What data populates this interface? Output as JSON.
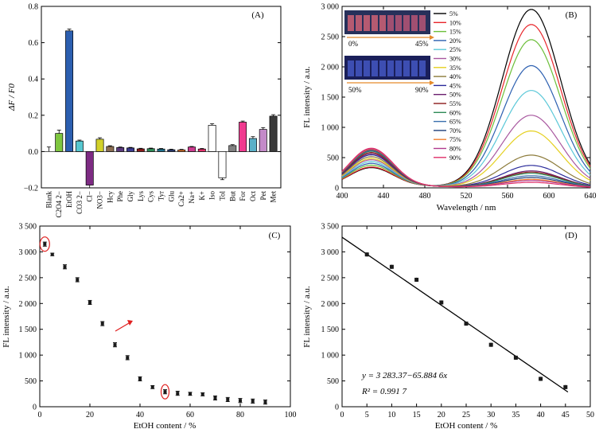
{
  "chart_data": [
    {
      "panel": "(A)",
      "type": "bar",
      "ylabel": "ΔF / F0",
      "ylim": [
        -0.2,
        0.8
      ],
      "yticks": [
        "−0.2",
        "0.0",
        "0.2",
        "0.4",
        "0.6",
        "0.8"
      ],
      "categories": [
        "Blank",
        "C2O4 2−",
        "EtOH",
        "CO3 2−",
        "Cl−",
        "NO3−",
        "Hcy",
        "Phe",
        "Gly",
        "Lys",
        "Cys",
        "Tyr",
        "Glu",
        "Ca2+",
        "Na+",
        "K+",
        "Iso",
        "Tol",
        "But",
        "For",
        "Oct",
        "Pet",
        "Met"
      ],
      "values": [
        0.0,
        0.1,
        0.665,
        0.058,
        -0.185,
        0.068,
        0.028,
        0.022,
        0.02,
        0.015,
        0.016,
        0.014,
        0.01,
        0.009,
        0.025,
        0.014,
        0.145,
        -0.145,
        0.033,
        0.162,
        0.072,
        0.122,
        0.195
      ],
      "errors": [
        0.025,
        0.018,
        0.01,
        0.005,
        0.015,
        0.008,
        0.004,
        0.003,
        0.003,
        0.003,
        0.003,
        0.003,
        0.003,
        0.003,
        0.003,
        0.003,
        0.008,
        0.01,
        0.005,
        0.006,
        0.01,
        0.01,
        0.008
      ],
      "colors": [
        "#e8262b",
        "#7ec63f",
        "#2c5fb0",
        "#56c7d0",
        "#7d2b83",
        "#d2d12a",
        "#8c6e52",
        "#5b3a7e",
        "#3a3a8f",
        "#8b1a1a",
        "#2e8b57",
        "#1f6f8b",
        "#2c3e7a",
        "#f08030",
        "#cc3b8f",
        "#e0306a",
        "#ffffff",
        "#ffffff",
        "#808080",
        "#f03a8f",
        "#5ab0c8",
        "#c38ac8",
        "#3a3a3a"
      ]
    },
    {
      "panel": "(B)",
      "type": "line",
      "xlabel": "Wavelength / nm",
      "ylabel": "FL intensity / a.u.",
      "xlim": [
        400,
        640
      ],
      "ylim": [
        0,
        3000
      ],
      "xticks": [
        "400",
        "440",
        "480",
        "520",
        "560",
        "600",
        "640"
      ],
      "yticks": [
        "0",
        "500",
        "1 000",
        "1 500",
        "2 000",
        "2 500",
        "3 000"
      ],
      "inset_labels": [
        "0%",
        "45%",
        "50%",
        "90%"
      ],
      "series": [
        {
          "name": "5%",
          "color": "#000000",
          "peak2": 2950,
          "peak1": 320
        },
        {
          "name": "10%",
          "color": "#e8262b",
          "peak2": 2700,
          "peak1": 330
        },
        {
          "name": "15%",
          "color": "#6cbf3a",
          "peak2": 2450,
          "peak1": 360
        },
        {
          "name": "20%",
          "color": "#2c5fb0",
          "peak2": 2020,
          "peak1": 390
        },
        {
          "name": "25%",
          "color": "#5bc8d8",
          "peak2": 1610,
          "peak1": 420
        },
        {
          "name": "30%",
          "color": "#a8579f",
          "peak2": 1200,
          "peak1": 450
        },
        {
          "name": "35%",
          "color": "#e5d020",
          "peak2": 940,
          "peak1": 470
        },
        {
          "name": "40%",
          "color": "#8c7b3a",
          "peak2": 540,
          "peak1": 500
        },
        {
          "name": "45%",
          "color": "#2a2a9a",
          "peak2": 370,
          "peak1": 530
        },
        {
          "name": "50%",
          "color": "#6a1f6e",
          "peak2": 280,
          "peak1": 550
        },
        {
          "name": "55%",
          "color": "#8b1a1a",
          "peak2": 260,
          "peak1": 570
        },
        {
          "name": "60%",
          "color": "#2e8b57",
          "peak2": 240,
          "peak1": 590
        },
        {
          "name": "65%",
          "color": "#3a6fae",
          "peak2": 200,
          "peak1": 600
        },
        {
          "name": "70%",
          "color": "#1f3f7a",
          "peak2": 170,
          "peak1": 610
        },
        {
          "name": "75%",
          "color": "#f08030",
          "peak2": 140,
          "peak1": 620
        },
        {
          "name": "80%",
          "color": "#b03a8f",
          "peak2": 120,
          "peak1": 630
        },
        {
          "name": "90%",
          "color": "#e0306a",
          "peak2": 90,
          "peak1": 640
        }
      ]
    },
    {
      "panel": "(C)",
      "type": "scatter",
      "xlabel": "EtOH content / %",
      "ylabel": "FL intensity / a.u.",
      "xlim": [
        0,
        100
      ],
      "ylim": [
        0,
        3500
      ],
      "xticks": [
        "0",
        "20",
        "40",
        "60",
        "80",
        "100"
      ],
      "yticks": [
        "0",
        "500",
        "1 000",
        "1 500",
        "2 000",
        "2 500",
        "3 000",
        "3 500"
      ],
      "x": [
        2,
        5,
        10,
        15,
        20,
        25,
        30,
        35,
        40,
        45,
        50,
        55,
        60,
        65,
        70,
        75,
        80,
        85,
        90
      ],
      "y": [
        3150,
        2950,
        2710,
        2460,
        2020,
        1610,
        1200,
        950,
        540,
        380,
        290,
        260,
        250,
        240,
        170,
        140,
        120,
        110,
        90
      ],
      "errors": [
        40,
        25,
        40,
        40,
        40,
        40,
        40,
        40,
        40,
        30,
        40,
        40,
        30,
        30,
        40,
        40,
        40,
        40,
        40
      ]
    },
    {
      "panel": "(D)",
      "type": "scatter",
      "xlabel": "EtOH content / %",
      "ylabel": "FL intensity / a.u.",
      "xlim": [
        0,
        50
      ],
      "ylim": [
        0,
        3500
      ],
      "xticks": [
        "0",
        "5",
        "10",
        "15",
        "20",
        "25",
        "30",
        "35",
        "40",
        "45",
        "50"
      ],
      "yticks": [
        "0",
        "500",
        "1 000",
        "1 500",
        "2 000",
        "2 500",
        "3 000",
        "3 500"
      ],
      "x": [
        5,
        10,
        15,
        20,
        25,
        30,
        35,
        40,
        45
      ],
      "y": [
        2950,
        2710,
        2460,
        2020,
        1610,
        1200,
        950,
        540,
        380
      ],
      "fit": {
        "intercept": 3283.37,
        "slope": -65.8846
      },
      "equation": "y = 3 283.37−65.884 6x",
      "r2": "R² = 0.991 7"
    }
  ]
}
